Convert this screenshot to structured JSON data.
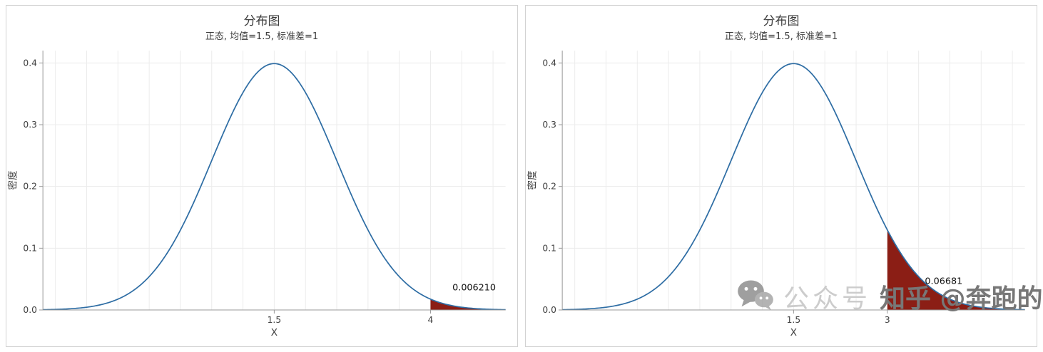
{
  "chart_data": [
    {
      "type": "area",
      "title": "分布图",
      "subtitle": "正态, 均值=1.5, 标准差=1",
      "xlabel": "X",
      "ylabel": "密度",
      "distribution": {
        "name": "normal",
        "mean": 1.5,
        "sd": 1
      },
      "x_range": [
        -2.2,
        5.2
      ],
      "ylim": [
        0,
        0.42
      ],
      "yticks": [
        0,
        0.1,
        0.2,
        0.3,
        0.4
      ],
      "ytick_labels": [
        "0.0",
        "0.1",
        "0.2",
        "0.3",
        "0.4"
      ],
      "xticks": [
        {
          "value": 1.5,
          "label": "1.5"
        },
        {
          "value": 4,
          "label": "4"
        }
      ],
      "shade": {
        "side": "right_tail",
        "from": 4,
        "area": 0.00621,
        "label": "0.006210",
        "label_x": 4.35,
        "label_y": 0.032
      },
      "grid_x_step": 0.5,
      "grid": true,
      "legend": "none",
      "colors": {
        "curve": "#2e6da4",
        "fill": "#8b1e15"
      }
    },
    {
      "type": "area",
      "title": "分布图",
      "subtitle": "正态, 均值=1.5, 标准差=1",
      "xlabel": "X",
      "ylabel": "密度",
      "distribution": {
        "name": "normal",
        "mean": 1.5,
        "sd": 1
      },
      "x_range": [
        -2.2,
        5.2
      ],
      "ylim": [
        0,
        0.42
      ],
      "yticks": [
        0,
        0.1,
        0.2,
        0.3,
        0.4
      ],
      "ytick_labels": [
        "0.0",
        "0.1",
        "0.2",
        "0.3",
        "0.4"
      ],
      "xticks": [
        {
          "value": 1.5,
          "label": "1.5"
        },
        {
          "value": 3,
          "label": "3"
        }
      ],
      "shade": {
        "side": "right_tail",
        "from": 3,
        "area": 0.06681,
        "label": "0.06681",
        "label_x": 3.6,
        "label_y": 0.042
      },
      "grid_x_step": 0.5,
      "grid": true,
      "legend": "none",
      "colors": {
        "curve": "#2e6da4",
        "fill": "#8b1e15"
      }
    }
  ],
  "watermark": {
    "wechat_label": "公众号",
    "credit": "知乎 @奔跑的"
  }
}
